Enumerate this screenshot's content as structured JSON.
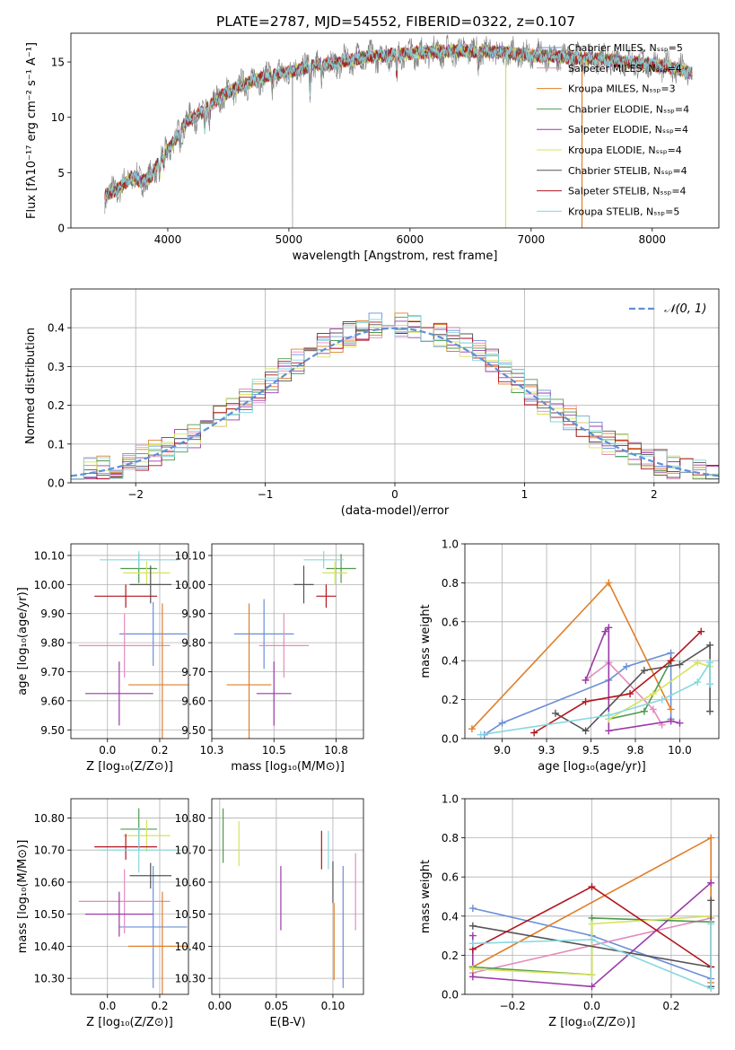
{
  "figure": {
    "title": "PLATE=2787, MJD=54552, FIBERID=0322, z=0.107"
  },
  "colors": {
    "Chabrier MILES": "#6a8fd8",
    "Salpeter MILES": "#e48bbd",
    "Kroupa MILES": "#e07f2a",
    "Chabrier ELODIE": "#4f9a4f",
    "Salpeter ELODIE": "#9b3aaa",
    "Kroupa ELODIE": "#d6e35a",
    "Chabrier STELIB": "#555555",
    "Salpeter STELIB": "#b0161e",
    "Kroupa STELIB": "#86d8e0",
    "data": "#808080",
    "normal": "#5f8fd6"
  },
  "chart_data": [
    {
      "id": "spectrum",
      "type": "line",
      "title": "PLATE=2787, MJD=54552, FIBERID=0322, z=0.107",
      "xlabel": "wavelength [Angstrom, rest frame]",
      "ylabel": "Flux [fλ10⁻¹⁷ erg cm⁻² s⁻¹ A⁻¹]",
      "xlim": [
        3200,
        8550
      ],
      "ylim": [
        0,
        17.6
      ],
      "xticks": [
        4000,
        5000,
        6000,
        7000,
        8000
      ],
      "yticks": [
        0,
        5,
        10,
        15
      ],
      "grid": false,
      "legend_position": "top-right",
      "legend": [
        "Chabrier MILES, Nₛₛₚ=5",
        "Salpeter MILES, Nₛₛₚ=4",
        "Kroupa MILES, Nₛₛₚ=3",
        "Chabrier ELODIE, Nₛₛₚ=4",
        "Salpeter ELODIE, Nₛₛₚ=4",
        "Kroupa ELODIE, Nₛₛₚ=4",
        "Chabrier STELIB, Nₛₛₚ=4",
        "Salpeter STELIB, Nₛₛₚ=4",
        "Kroupa STELIB, Nₛₛₚ=5"
      ],
      "continuum": [
        [
          3480,
          2.9
        ],
        [
          3600,
          3.6
        ],
        [
          3700,
          4.6
        ],
        [
          3780,
          4.2
        ],
        [
          3860,
          4.6
        ],
        [
          3950,
          6.4
        ],
        [
          4050,
          7.8
        ],
        [
          4150,
          9.6
        ],
        [
          4300,
          10.6
        ],
        [
          4450,
          12.0
        ],
        [
          4600,
          12.8
        ],
        [
          4800,
          13.7
        ],
        [
          5000,
          14.1
        ],
        [
          5200,
          14.7
        ],
        [
          5400,
          14.9
        ],
        [
          5600,
          15.4
        ],
        [
          5800,
          15.6
        ],
        [
          6000,
          15.8
        ],
        [
          6200,
          15.9
        ],
        [
          6400,
          16.0
        ],
        [
          6600,
          16.0
        ],
        [
          6800,
          15.8
        ],
        [
          7000,
          15.6
        ],
        [
          7200,
          15.5
        ],
        [
          7400,
          15.3
        ],
        [
          7600,
          15.2
        ],
        [
          7800,
          15.0
        ],
        [
          8000,
          14.8
        ],
        [
          8200,
          14.4
        ],
        [
          8330,
          14.0
        ]
      ],
      "absorption_lines": [
        [
          3934,
          1.2
        ],
        [
          3968,
          1.0
        ],
        [
          4102,
          1.5
        ],
        [
          4305,
          1.6
        ],
        [
          4340,
          1.3
        ],
        [
          4861,
          1.2
        ],
        [
          5175,
          2.4
        ],
        [
          5270,
          1.3
        ],
        [
          5890,
          1.8
        ],
        [
          6563,
          1.1
        ]
      ],
      "spikes_to_zero": [
        5030,
        6790,
        7420
      ]
    },
    {
      "id": "residuals",
      "type": "bar",
      "xlabel": "(data-model)/error",
      "ylabel": "Normed distribution",
      "xlim": [
        -2.5,
        2.5
      ],
      "ylim": [
        0,
        0.5
      ],
      "xticks": [
        -2,
        -1,
        0,
        1,
        2
      ],
      "yticks": [
        0.0,
        0.1,
        0.2,
        0.3,
        0.4
      ],
      "grid": true,
      "legend_position": "top-right",
      "legend": [
        "𝒩(0, 1)"
      ],
      "bin_width": 0.1,
      "bin_start": -2.5
    },
    {
      "id": "age-vs-Z",
      "type": "scatter",
      "xlabel": "Z [log₁₀(Z/Z⊙)]",
      "ylabel": "age [log₁₀(age/yr)]",
      "xlim": [
        -0.14,
        0.31
      ],
      "ylim": [
        9.47,
        10.14
      ],
      "xticks": [
        0.0,
        0.2
      ],
      "yticks": [
        9.5,
        9.6,
        9.7,
        9.8,
        9.9,
        10.0,
        10.1
      ],
      "grid": true,
      "points": [
        {
          "model": "Chabrier MILES",
          "x": 0.175,
          "xerr": 0.13,
          "y": 9.83,
          "yerr": 0.11
        },
        {
          "model": "Salpeter MILES",
          "x": 0.065,
          "xerr": 0.175,
          "y": 9.79,
          "yerr": 0.11
        },
        {
          "model": "Kroupa MILES",
          "x": 0.21,
          "xerr": 0.13,
          "y": 9.655,
          "yerr": 0.28
        },
        {
          "model": "Chabrier ELODIE",
          "x": 0.12,
          "xerr": 0.07,
          "y": 10.055,
          "yerr": 0.05
        },
        {
          "model": "Salpeter ELODIE",
          "x": 0.045,
          "xerr": 0.13,
          "y": 9.625,
          "yerr": 0.11
        },
        {
          "model": "Kroupa ELODIE",
          "x": 0.15,
          "xerr": 0.09,
          "y": 10.04,
          "yerr": 0.04
        },
        {
          "model": "Chabrier STELIB",
          "x": 0.165,
          "xerr": 0.08,
          "y": 10.0,
          "yerr": 0.065
        },
        {
          "model": "Salpeter STELIB",
          "x": 0.07,
          "xerr": 0.12,
          "y": 9.96,
          "yerr": 0.04
        },
        {
          "model": "Kroupa STELIB",
          "x": 0.12,
          "xerr": 0.15,
          "y": 10.085,
          "yerr": 0.03
        }
      ]
    },
    {
      "id": "age-vs-mass",
      "type": "scatter",
      "xlabel": "mass [log₁₀(M/M⊙)]",
      "ylabel": "",
      "xlim": [
        10.25,
        10.86
      ],
      "ylim": [
        9.47,
        10.14
      ],
      "xticks": [
        10.25,
        10.5,
        10.75
      ],
      "yticks": [
        9.5,
        9.6,
        9.7,
        9.8,
        9.9,
        10.0,
        10.1
      ],
      "grid": true,
      "points": [
        {
          "model": "Chabrier MILES",
          "x": 10.46,
          "xerr": 0.12,
          "y": 9.83,
          "yerr": 0.12
        },
        {
          "model": "Salpeter MILES",
          "x": 10.54,
          "xerr": 0.1,
          "y": 9.79,
          "yerr": 0.11
        },
        {
          "model": "Kroupa MILES",
          "x": 10.4,
          "xerr": 0.09,
          "y": 9.655,
          "yerr": 0.28
        },
        {
          "model": "Chabrier ELODIE",
          "x": 10.77,
          "xerr": 0.06,
          "y": 10.055,
          "yerr": 0.05
        },
        {
          "model": "Salpeter ELODIE",
          "x": 10.5,
          "xerr": 0.07,
          "y": 9.625,
          "yerr": 0.11
        },
        {
          "model": "Kroupa ELODIE",
          "x": 10.745,
          "xerr": 0.05,
          "y": 10.04,
          "yerr": 0.04
        },
        {
          "model": "Chabrier STELIB",
          "x": 10.62,
          "xerr": 0.04,
          "y": 10.0,
          "yerr": 0.065
        },
        {
          "model": "Salpeter STELIB",
          "x": 10.71,
          "xerr": 0.04,
          "y": 9.96,
          "yerr": 0.04
        },
        {
          "model": "Kroupa STELIB",
          "x": 10.7,
          "xerr": 0.08,
          "y": 10.085,
          "yerr": 0.03
        }
      ]
    },
    {
      "id": "weight-vs-age",
      "type": "line",
      "xlabel": "age [log₁₀(age/yr)]",
      "ylabel": "mass weight",
      "xlim": [
        8.79,
        10.22
      ],
      "ylim": [
        0,
        1.0
      ],
      "xticks": [
        9.0,
        9.25,
        9.5,
        9.75,
        10.0
      ],
      "yticks": [
        0.0,
        0.2,
        0.4,
        0.6,
        0.8,
        1.0
      ],
      "grid": true,
      "series": [
        {
          "model": "Chabrier MILES",
          "x": [
            8.9,
            9.0,
            9.6,
            9.7,
            9.95,
            9.95
          ],
          "y": [
            0.02,
            0.08,
            0.3,
            0.37,
            0.44,
            0.1
          ]
        },
        {
          "model": "Salpeter MILES",
          "x": [
            9.47,
            9.6,
            9.85,
            9.9
          ],
          "y": [
            0.3,
            0.39,
            0.15,
            0.07
          ]
        },
        {
          "model": "Kroupa MILES",
          "x": [
            8.83,
            9.6,
            9.95
          ],
          "y": [
            0.05,
            0.8,
            0.15
          ]
        },
        {
          "model": "Chabrier ELODIE",
          "x": [
            9.6,
            9.8,
            9.95
          ],
          "y": [
            0.1,
            0.14,
            0.4
          ]
        },
        {
          "model": "Salpeter ELODIE",
          "x": [
            9.47,
            9.58,
            9.6,
            9.6,
            9.95,
            10.0
          ],
          "y": [
            0.3,
            0.55,
            0.57,
            0.04,
            0.09,
            0.08
          ]
        },
        {
          "model": "Kroupa ELODIE",
          "x": [
            9.6,
            9.85,
            10.1,
            10.17
          ],
          "y": [
            0.1,
            0.23,
            0.39,
            0.37
          ]
        },
        {
          "model": "Chabrier STELIB",
          "x": [
            9.3,
            9.47,
            9.8,
            10.0,
            10.17,
            10.17
          ],
          "y": [
            0.13,
            0.04,
            0.35,
            0.38,
            0.48,
            0.14
          ]
        },
        {
          "model": "Salpeter STELIB",
          "x": [
            9.18,
            9.47,
            9.72,
            9.95,
            10.12
          ],
          "y": [
            0.03,
            0.19,
            0.23,
            0.4,
            0.55
          ]
        },
        {
          "model": "Kroupa STELIB",
          "x": [
            8.88,
            9.6,
            9.9,
            10.1,
            10.17,
            10.17
          ],
          "y": [
            0.02,
            0.12,
            0.2,
            0.29,
            0.39,
            0.28
          ]
        }
      ]
    },
    {
      "id": "mass-vs-Z",
      "type": "scatter",
      "xlabel": "Z [log₁₀(Z/Z⊙)]",
      "ylabel": "mass [log₁₀(M/M⊙)]",
      "xlim": [
        -0.14,
        0.31
      ],
      "ylim": [
        10.25,
        10.86
      ],
      "xticks": [
        0.0,
        0.2
      ],
      "yticks": [
        10.3,
        10.4,
        10.5,
        10.6,
        10.7,
        10.8
      ],
      "grid": true,
      "points": [
        {
          "model": "Chabrier MILES",
          "x": 0.175,
          "xerr": 0.13,
          "y": 10.46,
          "yerr": 0.19
        },
        {
          "model": "Salpeter MILES",
          "x": 0.065,
          "xerr": 0.175,
          "y": 10.54,
          "yerr": 0.1
        },
        {
          "model": "Kroupa MILES",
          "x": 0.21,
          "xerr": 0.13,
          "y": 10.4,
          "yerr": 0.17
        },
        {
          "model": "Chabrier ELODIE",
          "x": 0.12,
          "xerr": 0.07,
          "y": 10.765,
          "yerr": 0.065
        },
        {
          "model": "Salpeter ELODIE",
          "x": 0.045,
          "xerr": 0.13,
          "y": 10.5,
          "yerr": 0.07
        },
        {
          "model": "Kroupa ELODIE",
          "x": 0.15,
          "xerr": 0.09,
          "y": 10.745,
          "yerr": 0.05
        },
        {
          "model": "Chabrier STELIB",
          "x": 0.165,
          "xerr": 0.08,
          "y": 10.62,
          "yerr": 0.04
        },
        {
          "model": "Salpeter STELIB",
          "x": 0.07,
          "xerr": 0.12,
          "y": 10.71,
          "yerr": 0.04
        },
        {
          "model": "Kroupa STELIB",
          "x": 0.12,
          "xerr": 0.15,
          "y": 10.7,
          "yerr": 0.07
        }
      ]
    },
    {
      "id": "mass-vs-EBV",
      "type": "scatter",
      "xlabel": "E(B-V)",
      "ylabel": "",
      "xlim": [
        -0.007,
        0.127
      ],
      "ylim": [
        10.25,
        10.86
      ],
      "xticks": [
        0.0,
        0.05,
        0.1
      ],
      "yticks": [
        10.3,
        10.4,
        10.5,
        10.6,
        10.7,
        10.8
      ],
      "grid": true,
      "points": [
        {
          "model": "Chabrier MILES",
          "x": 0.109,
          "y": 10.46,
          "yerr": 0.19
        },
        {
          "model": "Salpeter MILES",
          "x": 0.12,
          "y": 10.57,
          "yerr": 0.12
        },
        {
          "model": "Kroupa MILES",
          "x": 0.101,
          "y": 10.415,
          "yerr": 0.12
        },
        {
          "model": "Chabrier ELODIE",
          "x": 0.003,
          "y": 10.745,
          "yerr": 0.085
        },
        {
          "model": "Salpeter ELODIE",
          "x": 0.054,
          "y": 10.55,
          "yerr": 0.1
        },
        {
          "model": "Kroupa ELODIE",
          "x": 0.017,
          "y": 10.72,
          "yerr": 0.07
        },
        {
          "model": "Chabrier STELIB",
          "x": 0.1,
          "y": 10.6,
          "yerr": 0.065
        },
        {
          "model": "Salpeter STELIB",
          "x": 0.09,
          "y": 10.7,
          "yerr": 0.06
        },
        {
          "model": "Kroupa STELIB",
          "x": 0.096,
          "y": 10.7,
          "yerr": 0.06
        }
      ]
    },
    {
      "id": "weight-vs-Z",
      "type": "line",
      "xlabel": "Z [log₁₀(Z/Z⊙)]",
      "ylabel": "mass weight",
      "xlim": [
        -0.32,
        0.32
      ],
      "ylim": [
        0,
        1.0
      ],
      "xticks": [
        -0.2,
        0.0,
        0.2
      ],
      "yticks": [
        0.0,
        0.2,
        0.4,
        0.6,
        0.8,
        1.0
      ],
      "grid": true,
      "series": [
        {
          "model": "Chabrier MILES",
          "x": [
            -0.3,
            0.0,
            0.3,
            0.3
          ],
          "y": [
            0.44,
            0.3,
            0.08,
            0.37
          ]
        },
        {
          "model": "Salpeter MILES",
          "x": [
            -0.3,
            0.3
          ],
          "y": [
            0.11,
            0.39
          ]
        },
        {
          "model": "Kroupa MILES",
          "x": [
            -0.3,
            0.3,
            0.3
          ],
          "y": [
            0.14,
            0.8,
            0.06
          ]
        },
        {
          "model": "Chabrier ELODIE",
          "x": [
            -0.3,
            0.0,
            0.0,
            0.3
          ],
          "y": [
            0.14,
            0.1,
            0.39,
            0.37
          ]
        },
        {
          "model": "Salpeter ELODIE",
          "x": [
            -0.3,
            -0.3,
            0.0,
            0.3
          ],
          "y": [
            0.3,
            0.09,
            0.04,
            0.57
          ]
        },
        {
          "model": "Kroupa ELODIE",
          "x": [
            -0.3,
            0.0,
            0.0,
            0.3
          ],
          "y": [
            0.13,
            0.1,
            0.36,
            0.4
          ]
        },
        {
          "model": "Chabrier STELIB",
          "x": [
            -0.3,
            0.3,
            0.3,
            0.3
          ],
          "y": [
            0.35,
            0.14,
            0.04,
            0.48
          ]
        },
        {
          "model": "Salpeter STELIB",
          "x": [
            -0.3,
            0.0,
            0.3
          ],
          "y": [
            0.23,
            0.55,
            0.14
          ]
        },
        {
          "model": "Kroupa STELIB",
          "x": [
            -0.3,
            0.0,
            0.3,
            0.3
          ],
          "y": [
            0.26,
            0.28,
            0.03,
            0.36
          ]
        }
      ]
    }
  ]
}
